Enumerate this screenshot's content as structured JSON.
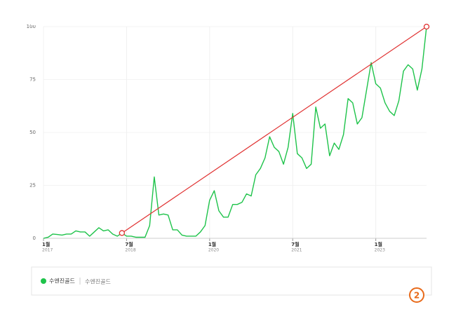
{
  "chart_data": {
    "type": "line",
    "categories": [
      {
        "month": "1월",
        "year": "2017"
      },
      null,
      null,
      null,
      null,
      null,
      null,
      null,
      null,
      null,
      null,
      null,
      null,
      null,
      null,
      null,
      null,
      null,
      {
        "month": "7월",
        "year": "2018"
      },
      null,
      null,
      null,
      null,
      null,
      null,
      null,
      null,
      null,
      null,
      null,
      null,
      null,
      null,
      null,
      null,
      null,
      {
        "month": "1월",
        "year": "2020"
      },
      null,
      null,
      null,
      null,
      null,
      null,
      null,
      null,
      null,
      null,
      null,
      null,
      null,
      null,
      null,
      null,
      null,
      {
        "month": "7월",
        "year": "2021"
      },
      null,
      null,
      null,
      null,
      null,
      null,
      null,
      null,
      null,
      null,
      null,
      null,
      null,
      null,
      null,
      null,
      null,
      {
        "month": "1월",
        "year": "2023"
      },
      null,
      null,
      null,
      null,
      null,
      null,
      null,
      null,
      null,
      null,
      null
    ],
    "series": [
      {
        "name": "수엔진골드",
        "color": "#1ec34a",
        "values": [
          0,
          0.5,
          2,
          1.8,
          1.5,
          2,
          2,
          3.5,
          3,
          3,
          1,
          3,
          5,
          3.5,
          4,
          2,
          1,
          2.5,
          1,
          1,
          0.5,
          0.5,
          0.5,
          6,
          29,
          11,
          11.5,
          11,
          4,
          4,
          1.5,
          1,
          1,
          1,
          3,
          6,
          18,
          22.5,
          13,
          10,
          10,
          16,
          16,
          17,
          21,
          20,
          30,
          33,
          38,
          48,
          43,
          41,
          35,
          43,
          59,
          40,
          38,
          33,
          35,
          62,
          52,
          54,
          39,
          45,
          42,
          49,
          66,
          64,
          54,
          57,
          70,
          83,
          73,
          71,
          64,
          60,
          58,
          65,
          79,
          82,
          80,
          70,
          80,
          100
        ]
      }
    ],
    "legend_caption": "수엔진골드",
    "trend_line": {
      "color": "#e03030",
      "from_index": 17,
      "to_index": 83
    },
    "ylim": [
      0,
      100
    ],
    "yticks": [
      0,
      25,
      50,
      75,
      100
    ],
    "grid": true
  },
  "badge": "2"
}
